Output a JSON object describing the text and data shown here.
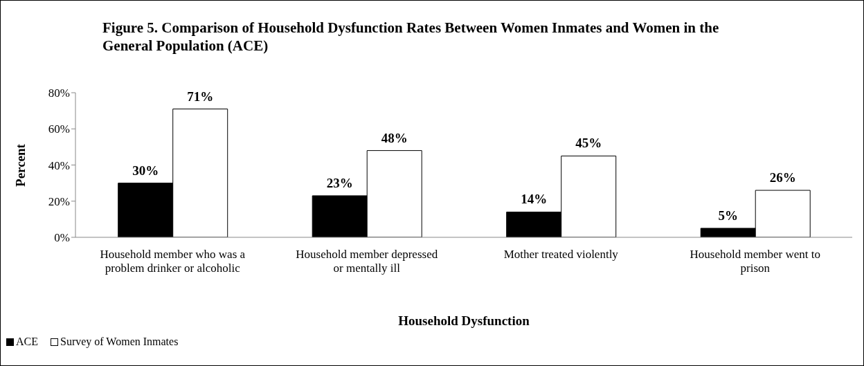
{
  "chart_data": {
    "type": "bar",
    "title": "Figure 5. Comparison of Household Dysfunction Rates Between Women Inmates and Women in the General Population (ACE)",
    "xlabel": "Household Dysfunction",
    "ylabel": "Percent",
    "categories": [
      "Household member who was a problem drinker or alcoholic",
      "Household member depressed or mentally ill",
      "Mother treated violently",
      "Household member went to prison"
    ],
    "series": [
      {
        "name": "ACE",
        "color": "#000000",
        "values": [
          30,
          23,
          14,
          5
        ],
        "value_labels": [
          "30%",
          "23%",
          "14%",
          "5%"
        ]
      },
      {
        "name": "Survey of Women Inmates",
        "color": "#ffffff",
        "values": [
          71,
          48,
          45,
          26
        ],
        "value_labels": [
          "71%",
          "48%",
          "45%",
          "26%"
        ]
      }
    ],
    "ylim": [
      0,
      80
    ],
    "yticks": [
      {
        "value": 0,
        "label": "0%"
      },
      {
        "value": 20,
        "label": "20%"
      },
      {
        "value": 40,
        "label": "40%"
      },
      {
        "value": 60,
        "label": "60%"
      },
      {
        "value": 80,
        "label": "80%"
      }
    ],
    "grid": false,
    "legend": "bottom left"
  }
}
